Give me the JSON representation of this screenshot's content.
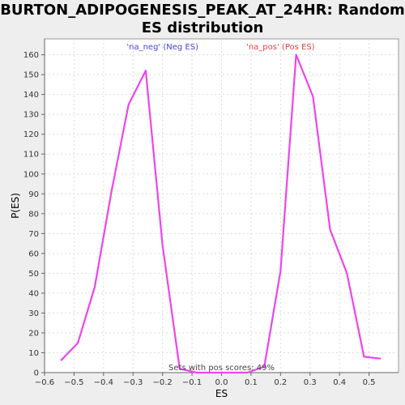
{
  "chart_data": {
    "type": "line",
    "title": "BURTON_ADIPOGENESIS_PEAK_AT_24HR: Random ES distribution",
    "xlabel": "ES",
    "ylabel": "P(ES)",
    "xlim": [
      -0.6,
      0.6
    ],
    "ylim": [
      0,
      168
    ],
    "x_ticks": [
      -0.6,
      -0.5,
      -0.4,
      -0.3,
      -0.2,
      -0.1,
      0.0,
      0.1,
      0.2,
      0.3,
      0.4,
      0.5
    ],
    "x_tick_labels": [
      "−0.6",
      "−0.5",
      "−0.4",
      "−0.3",
      "−0.2",
      "−0.1",
      "0.0",
      "0.1",
      "0.2",
      "0.3",
      "0.4",
      "0.5"
    ],
    "y_ticks": [
      0,
      10,
      20,
      30,
      40,
      50,
      60,
      70,
      80,
      90,
      100,
      110,
      120,
      130,
      140,
      150,
      160
    ],
    "y_tick_labels": [
      "0",
      "10",
      "20",
      "30",
      "40",
      "50",
      "60",
      "70",
      "80",
      "90",
      "100",
      "110",
      "120",
      "130",
      "140",
      "150",
      "160"
    ],
    "grid": true,
    "line_color": "#ee44ee",
    "series": [
      {
        "x": [
          -0.545,
          -0.487,
          -0.43,
          -0.372,
          -0.315,
          -0.257,
          -0.2,
          -0.142,
          -0.085,
          -0.027,
          0.03,
          0.088,
          0.145,
          0.2,
          0.253,
          0.31,
          0.368,
          0.425,
          0.483,
          0.54
        ],
        "values": [
          6,
          15,
          43,
          92,
          135,
          152,
          64,
          2,
          0,
          0,
          0,
          0,
          3,
          51,
          160,
          139,
          72,
          50,
          8,
          7
        ]
      }
    ],
    "annotations": {
      "neg": {
        "text": "'na_neg' (Neg ES)",
        "color": "#4444dd"
      },
      "pos": {
        "text": "'na_pos' (Pos ES)",
        "color": "#dd4444"
      },
      "sets": {
        "text": "Sets with pos scores: 49%",
        "color": "#444444"
      }
    }
  }
}
